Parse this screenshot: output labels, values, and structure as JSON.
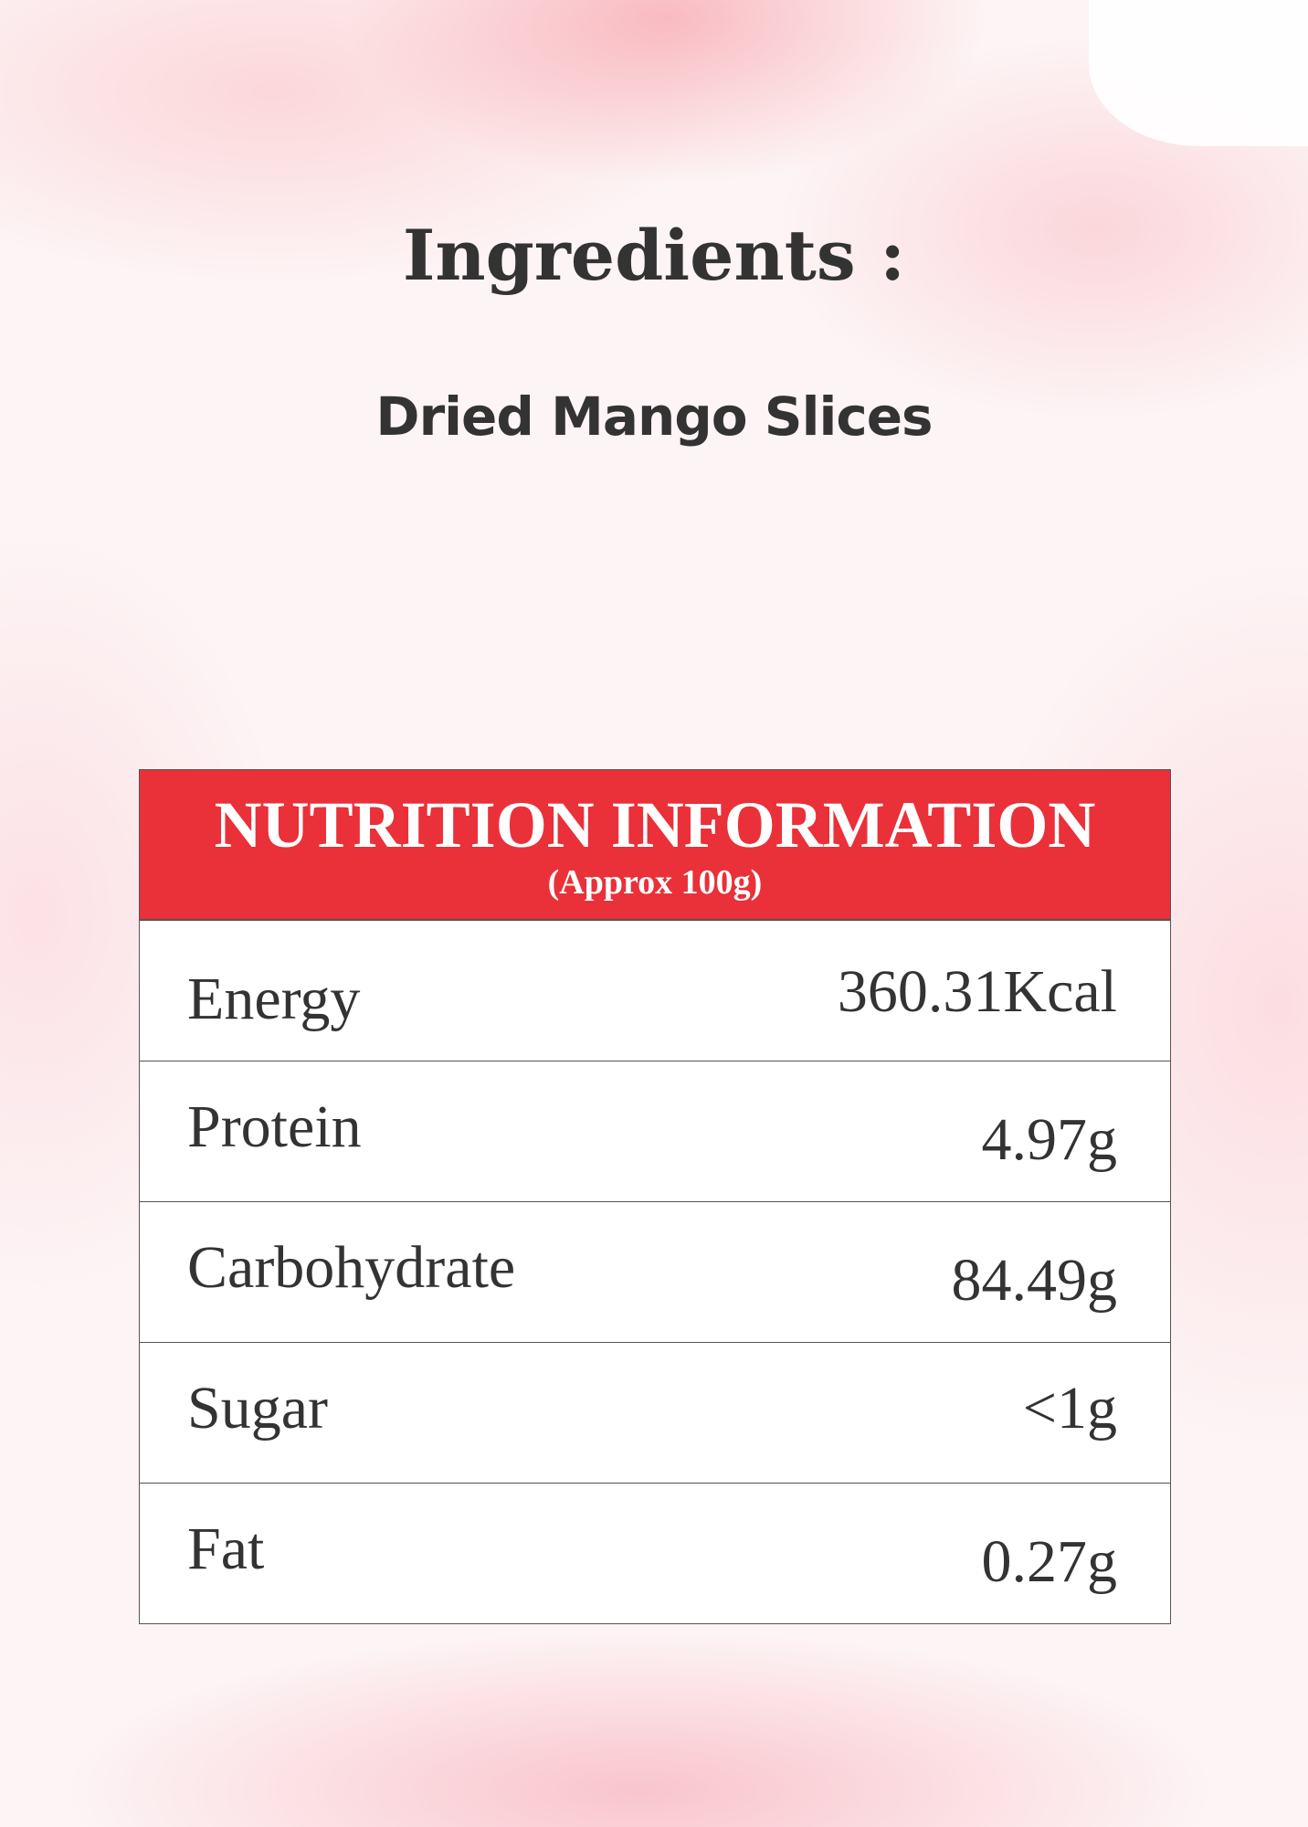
{
  "ingredients": {
    "title": "Ingredients :",
    "text": "Dried Mango Slices"
  },
  "nutrition": {
    "title": "NUTRITION INFORMATION",
    "subtitle": "(Approx 100g)",
    "header_color": "#ea3038",
    "rows": [
      {
        "label": "Energy",
        "value": "360.31Kcal"
      },
      {
        "label": "Protein",
        "value": "4.97g"
      },
      {
        "label": "Carbohydrate",
        "value": "84.49g"
      },
      {
        "label": "Sugar",
        "value": "<1g"
      },
      {
        "label": "Fat",
        "value": "0.27g"
      }
    ]
  }
}
